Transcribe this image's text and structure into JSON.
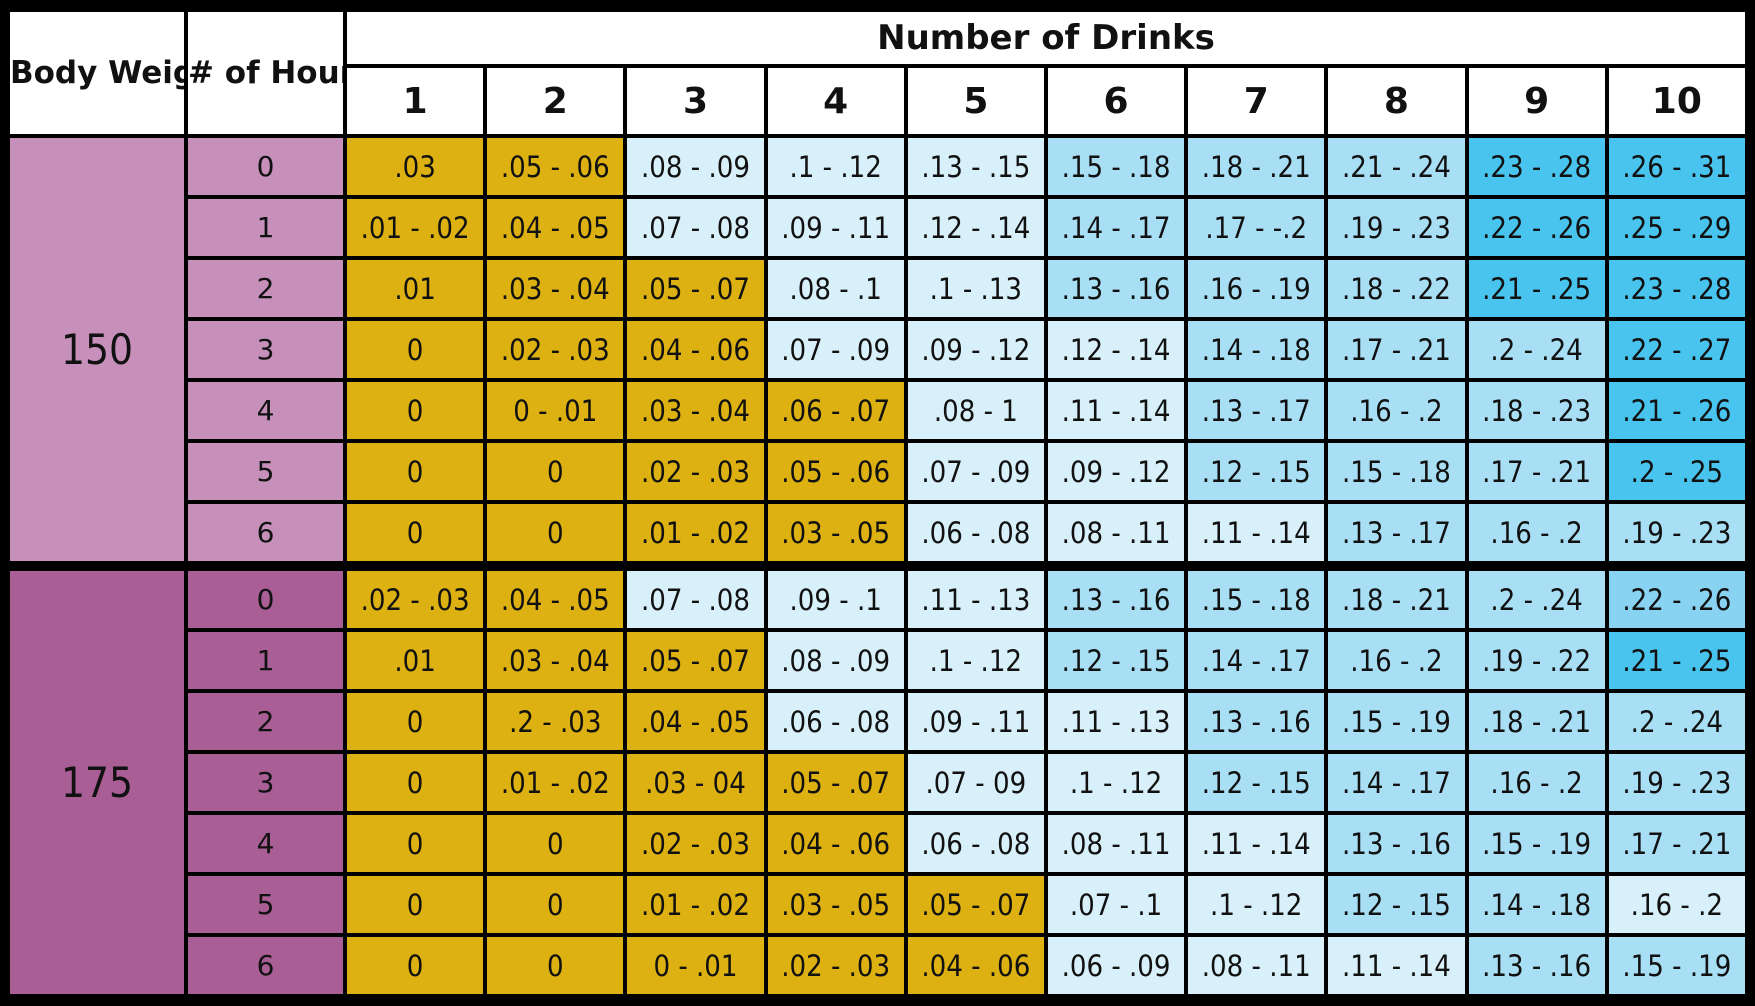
{
  "headers": {
    "body_weight": "Body Weight (lbs)",
    "hours": "# of Hours",
    "drinks_title": "Number of Drinks",
    "drink_counts": [
      "1",
      "2",
      "3",
      "4",
      "5",
      "6",
      "7",
      "8",
      "9",
      "10"
    ]
  },
  "colors": {
    "low": "#dcb111",
    "light": "#d8f0fa",
    "mid": "#a8dff5",
    "high": "#88d3f2",
    "highest": "#48c4ef",
    "weight_150": "#c690bb",
    "weight_175": "#a95e95"
  },
  "chart_data": {
    "type": "table",
    "columns": [
      "Body Weight (lbs)",
      "# of Hours",
      "1",
      "2",
      "3",
      "4",
      "5",
      "6",
      "7",
      "8",
      "9",
      "10"
    ],
    "groups": [
      {
        "weight": "150",
        "rows": [
          {
            "hours": "0",
            "values": [
              ".03",
              ".05 - .06",
              ".08 - .09",
              ".1 - .12",
              ".13 - .15",
              ".15 - .18",
              ".18 - .21",
              ".21 - .24",
              ".23 - .28",
              ".26 - .31"
            ],
            "shades": [
              0,
              0,
              1,
              1,
              1,
              2,
              2,
              2,
              4,
              4
            ]
          },
          {
            "hours": "1",
            "values": [
              ".01 - .02",
              ".04 - .05",
              ".07 - .08",
              ".09 - .11",
              ".12 - .14",
              ".14 - .17",
              ".17 - -.2",
              ".19 - .23",
              ".22 - .26",
              ".25 - .29"
            ],
            "shades": [
              0,
              0,
              1,
              1,
              1,
              2,
              2,
              2,
              4,
              4
            ]
          },
          {
            "hours": "2",
            "values": [
              ".01",
              ".03 - .04",
              ".05 - .07",
              ".08 - .1",
              ".1 - .13",
              ".13 - .16",
              ".16 - .19",
              ".18 - .22",
              ".21 - .25",
              ".23 - .28"
            ],
            "shades": [
              0,
              0,
              0,
              1,
              1,
              2,
              2,
              2,
              4,
              4
            ]
          },
          {
            "hours": "3",
            "values": [
              "0",
              ".02 - .03",
              ".04 - .06",
              ".07 - .09",
              ".09 - .12",
              ".12 - .14",
              ".14 - .18",
              ".17 - .21",
              ".2 - .24",
              ".22 - .27"
            ],
            "shades": [
              0,
              0,
              0,
              1,
              1,
              1,
              2,
              2,
              2,
              4
            ]
          },
          {
            "hours": "4",
            "values": [
              "0",
              "0 - .01",
              ".03 - .04",
              ".06 - .07",
              ".08 - 1",
              ".11 - .14",
              ".13 - .17",
              ".16 - .2",
              ".18 - .23",
              ".21 - .26"
            ],
            "shades": [
              0,
              0,
              0,
              0,
              1,
              1,
              2,
              2,
              2,
              4
            ]
          },
          {
            "hours": "5",
            "values": [
              "0",
              "0",
              ".02 - .03",
              ".05 - .06",
              ".07 - .09",
              ".09 - .12",
              ".12 - .15",
              ".15 - .18",
              ".17 - .21",
              ".2 - .25"
            ],
            "shades": [
              0,
              0,
              0,
              0,
              1,
              1,
              2,
              2,
              2,
              4
            ]
          },
          {
            "hours": "6",
            "values": [
              "0",
              "0",
              ".01 - .02",
              ".03 - .05",
              ".06 - .08",
              ".08 - .11",
              ".11 - .14",
              ".13 - .17",
              ".16 - .2",
              ".19 - .23"
            ],
            "shades": [
              0,
              0,
              0,
              0,
              1,
              1,
              1,
              2,
              2,
              2
            ]
          }
        ]
      },
      {
        "weight": "175",
        "rows": [
          {
            "hours": "0",
            "values": [
              ".02 - .03",
              ".04 - .05",
              ".07 - .08",
              ".09 - .1",
              ".11 - .13",
              ".13 - .16",
              ".15 - .18",
              ".18 - .21",
              ".2 - .24",
              ".22 - .26"
            ],
            "shades": [
              0,
              0,
              1,
              1,
              1,
              2,
              2,
              2,
              2,
              3
            ]
          },
          {
            "hours": "1",
            "values": [
              ".01",
              ".03 - .04",
              ".05 - .07",
              ".08 - .09",
              ".1 - .12",
              ".12 - .15",
              ".14 - .17",
              ".16 - .2",
              ".19 - .22",
              ".21 - .25"
            ],
            "shades": [
              0,
              0,
              0,
              1,
              1,
              2,
              2,
              2,
              2,
              4
            ]
          },
          {
            "hours": "2",
            "values": [
              "0",
              ".2 - .03",
              ".04 - .05",
              ".06 - .08",
              ".09 - .11",
              ".11 - .13",
              ".13 - .16",
              ".15 - .19",
              ".18 - .21",
              ".2 - .24"
            ],
            "shades": [
              0,
              0,
              0,
              1,
              1,
              1,
              2,
              2,
              2,
              2
            ]
          },
          {
            "hours": "3",
            "values": [
              "0",
              ".01 - .02",
              ".03 - 04",
              ".05 - .07",
              ".07 - 09",
              ".1 - .12",
              ".12 - .15",
              ".14 - .17",
              ".16 - .2",
              ".19 - .23"
            ],
            "shades": [
              0,
              0,
              0,
              0,
              1,
              1,
              2,
              2,
              2,
              2
            ]
          },
          {
            "hours": "4",
            "values": [
              "0",
              "0",
              ".02 - .03",
              ".04 - .06",
              ".06 - .08",
              ".08 - .11",
              ".11 - .14",
              ".13 - .16",
              ".15 - .19",
              ".17 - .21"
            ],
            "shades": [
              0,
              0,
              0,
              0,
              1,
              1,
              1,
              2,
              2,
              2
            ]
          },
          {
            "hours": "5",
            "values": [
              "0",
              "0",
              ".01 - .02",
              ".03 - .05",
              ".05 - .07",
              ".07 - .1",
              ".1 - .12",
              ".12 - .15",
              ".14 - .18",
              ".16 - .2"
            ],
            "shades": [
              0,
              0,
              0,
              0,
              0,
              1,
              1,
              2,
              2,
              1
            ]
          },
          {
            "hours": "6",
            "values": [
              "0",
              "0",
              "0 - .01",
              ".02 - .03",
              ".04 - .06",
              ".06 - .09",
              ".08 - .11",
              ".11 - .14",
              ".13 - .16",
              ".15 - .19"
            ],
            "shades": [
              0,
              0,
              0,
              0,
              0,
              1,
              1,
              1,
              2,
              2
            ]
          }
        ]
      }
    ]
  }
}
